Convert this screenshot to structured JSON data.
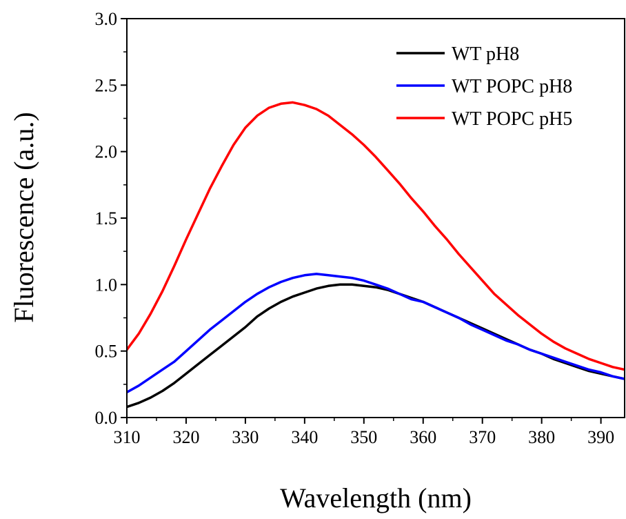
{
  "chart_data": {
    "type": "line",
    "title": "",
    "xlabel": "Wavelength (nm)",
    "ylabel": "Fluorescence (a.u.)",
    "xlim": [
      310,
      394
    ],
    "ylim": [
      0.0,
      3.0
    ],
    "x_ticks": [
      310,
      320,
      330,
      340,
      350,
      360,
      370,
      380,
      390
    ],
    "y_ticks": [
      0.0,
      0.5,
      1.0,
      1.5,
      2.0,
      2.5,
      3.0
    ],
    "x_tick_labels": [
      "310",
      "320",
      "330",
      "340",
      "350",
      "360",
      "370",
      "380",
      "390"
    ],
    "y_tick_labels": [
      "0.0",
      "0.5",
      "1.0",
      "1.5",
      "2.0",
      "2.5",
      "3.0"
    ],
    "grid": false,
    "legend_position": "top-right",
    "x": [
      310,
      312,
      314,
      316,
      318,
      320,
      322,
      324,
      326,
      328,
      330,
      332,
      334,
      336,
      338,
      340,
      342,
      344,
      346,
      348,
      350,
      352,
      354,
      356,
      358,
      360,
      362,
      364,
      366,
      368,
      370,
      372,
      374,
      376,
      378,
      380,
      382,
      384,
      386,
      388,
      390,
      392,
      394
    ],
    "series": [
      {
        "name": "WT pH8",
        "color": "#000000",
        "values": [
          0.08,
          0.11,
          0.15,
          0.2,
          0.26,
          0.33,
          0.4,
          0.47,
          0.54,
          0.61,
          0.68,
          0.76,
          0.82,
          0.87,
          0.91,
          0.94,
          0.97,
          0.99,
          1.0,
          1.0,
          0.99,
          0.98,
          0.96,
          0.93,
          0.9,
          0.87,
          0.83,
          0.79,
          0.75,
          0.71,
          0.67,
          0.63,
          0.59,
          0.55,
          0.51,
          0.48,
          0.44,
          0.41,
          0.38,
          0.35,
          0.33,
          0.31,
          0.29
        ]
      },
      {
        "name": "WT POPC pH8",
        "color": "#0000ff",
        "values": [
          0.19,
          0.24,
          0.3,
          0.36,
          0.42,
          0.5,
          0.58,
          0.66,
          0.73,
          0.8,
          0.87,
          0.93,
          0.98,
          1.02,
          1.05,
          1.07,
          1.08,
          1.07,
          1.06,
          1.05,
          1.03,
          1.0,
          0.97,
          0.93,
          0.89,
          0.87,
          0.83,
          0.79,
          0.75,
          0.7,
          0.66,
          0.62,
          0.58,
          0.55,
          0.51,
          0.48,
          0.45,
          0.42,
          0.39,
          0.36,
          0.34,
          0.31,
          0.29
        ]
      },
      {
        "name": "WT POPC pH5",
        "color": "#ff0000",
        "values": [
          0.51,
          0.63,
          0.78,
          0.95,
          1.14,
          1.34,
          1.53,
          1.72,
          1.89,
          2.05,
          2.18,
          2.27,
          2.33,
          2.36,
          2.37,
          2.35,
          2.32,
          2.27,
          2.2,
          2.13,
          2.05,
          1.96,
          1.86,
          1.76,
          1.65,
          1.55,
          1.44,
          1.34,
          1.23,
          1.13,
          1.03,
          0.93,
          0.85,
          0.77,
          0.7,
          0.63,
          0.57,
          0.52,
          0.48,
          0.44,
          0.41,
          0.38,
          0.36
        ]
      }
    ]
  }
}
